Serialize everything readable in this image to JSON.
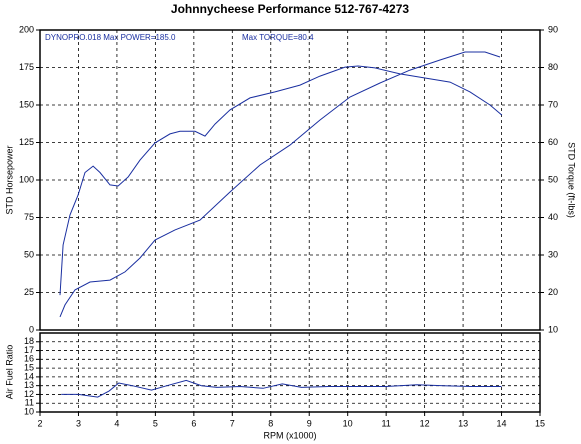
{
  "chart_data": [
    {
      "type": "line",
      "title": "Johnnycheese Performance 512-767-4273",
      "annotations": [
        "DYNOPRO.018  Max POWER=185.0",
        "Max TORQUE=80.4"
      ],
      "ylabel": "STD Horsepower",
      "y2label": "STD Torque (ft-lbs)",
      "xlim": [
        2,
        15
      ],
      "xticks": [
        2,
        3,
        4,
        5,
        6,
        7,
        8,
        9,
        10,
        11,
        12,
        13,
        14,
        15
      ],
      "ylim": [
        0,
        200
      ],
      "yticks": [
        0,
        25,
        50,
        75,
        100,
        125,
        150,
        175,
        200
      ],
      "y2lim": [
        10,
        90
      ],
      "y2ticks": [
        10,
        20,
        30,
        40,
        50,
        60,
        70,
        80,
        90
      ],
      "grid": true,
      "series": [
        {
          "color": "#1a2fa0",
          "x": [
            2.52,
            2.65,
            2.91,
            3.3,
            3.82,
            4.21,
            4.6,
            4.99,
            5.51,
            6.16,
            6.94,
            7.72,
            8.5,
            9.28,
            10.06,
            10.84,
            11.62,
            12.4,
            13.05,
            13.57,
            13.96
          ],
          "values": [
            8.7,
            16.7,
            26.7,
            32,
            33.3,
            38.7,
            48,
            60,
            66.7,
            73.3,
            92,
            110,
            123.3,
            140,
            155.3,
            164.7,
            173.3,
            180,
            185.3,
            185.3,
            182
          ]
        },
        {
          "color": "#1a2fa0",
          "axis": "y2",
          "x": [
            2.52,
            2.6,
            2.78,
            2.99,
            3.17,
            3.38,
            3.56,
            3.82,
            4.03,
            4.29,
            4.6,
            4.99,
            5.38,
            5.64,
            6.03,
            6.29,
            6.55,
            6.94,
            7.46,
            8.11,
            8.76,
            9.28,
            9.93,
            10.27,
            10.71,
            11.36,
            12.01,
            12.66,
            13.18,
            13.7,
            14.01
          ],
          "values": [
            19.3,
            32.7,
            40.7,
            46,
            52,
            53.7,
            52,
            48.7,
            48.4,
            50.8,
            55.3,
            59.9,
            62.3,
            63,
            63,
            61.7,
            64.9,
            68.7,
            71.9,
            73.5,
            75.3,
            77.7,
            80.1,
            80.4,
            79.9,
            78.3,
            77.2,
            76.1,
            73.5,
            70,
            67.3
          ]
        }
      ]
    },
    {
      "type": "line",
      "ylabel": "Air Fuel Ratio",
      "xlabel": "RPM (x1000)",
      "xlim": [
        2,
        15
      ],
      "xticks": [
        2,
        3,
        4,
        5,
        6,
        7,
        8,
        9,
        10,
        11,
        12,
        13,
        14,
        15
      ],
      "ylim": [
        10,
        19
      ],
      "yticks": [
        10,
        11,
        12,
        13,
        14,
        15,
        16,
        17,
        18
      ],
      "grid": true,
      "series": [
        {
          "color": "#1a2fa0",
          "x": [
            2.55,
            3.0,
            3.5,
            3.8,
            4.05,
            4.4,
            4.9,
            5.3,
            5.8,
            6.2,
            6.6,
            7.2,
            7.8,
            8.3,
            8.8,
            9.5,
            10.2,
            11.0,
            11.8,
            12.5,
            13.2,
            14.0
          ],
          "values": [
            12.0,
            12.0,
            11.7,
            12.4,
            13.3,
            13.0,
            12.5,
            13.0,
            13.6,
            13.0,
            12.8,
            12.9,
            12.7,
            13.2,
            12.8,
            12.9,
            12.9,
            12.9,
            13.1,
            13.0,
            12.9,
            12.9
          ]
        }
      ]
    }
  ]
}
